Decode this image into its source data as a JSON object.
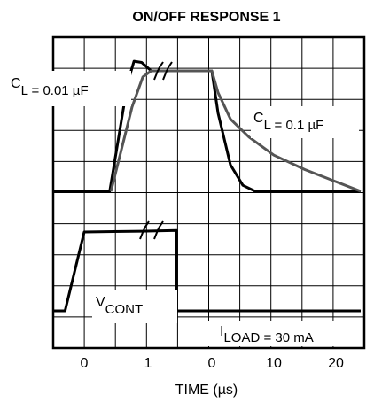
{
  "chart_data": {
    "type": "line",
    "title": "ON/OFF RESPONSE 1",
    "xlabel": "TIME (µs)",
    "x_tick_labels": [
      "0",
      "1",
      "0",
      "10",
      "20"
    ],
    "x_tick_note": "broken time axis: first segment 0–1.5 µs, second segment 0–25 µs after break",
    "grid": true,
    "panels": [
      {
        "name": "output",
        "series": [
          {
            "name": "CL = 0.01 µF",
            "color": "#000000",
            "points": [
              [
                0.4,
                0.0
              ],
              [
                0.68,
                0.9
              ],
              [
                0.78,
                1.08
              ],
              [
                0.9,
                1.07
              ],
              [
                1.05,
                1.0
              ],
              [
                1.35,
                1.0
              ],
              [
                1.5,
                1.0
              ],
              [
                0,
                1.0
              ],
              [
                1,
                0.65
              ],
              [
                3,
                0.22
              ],
              [
                5,
                0.05
              ],
              [
                7,
                0.0
              ],
              [
                10,
                0.0
              ],
              [
                24,
                0.0
              ]
            ]
          },
          {
            "name": "CL = 0.1 µF",
            "color": "#555555",
            "points": [
              [
                0.42,
                0.0
              ],
              [
                0.75,
                0.7
              ],
              [
                0.92,
                0.95
              ],
              [
                1.05,
                1.0
              ],
              [
                1.5,
                1.0
              ],
              [
                0,
                1.0
              ],
              [
                1,
                0.82
              ],
              [
                3,
                0.6
              ],
              [
                6,
                0.45
              ],
              [
                10,
                0.3
              ],
              [
                15,
                0.18
              ],
              [
                20,
                0.08
              ],
              [
                24,
                0.0
              ]
            ]
          }
        ],
        "annotations": [
          {
            "main": "C",
            "sub": "L = 0.01 µF"
          },
          {
            "main": "C",
            "sub": "L = 0.1 µF"
          }
        ]
      },
      {
        "name": "control",
        "series": [
          {
            "name": "VCONT",
            "color": "#000000",
            "points": [
              [
                -0.5,
                0.0
              ],
              [
                -0.3,
                0.0
              ],
              [
                0.0,
                1.0
              ],
              [
                0.9,
                1.01
              ],
              [
                1.45,
                1.02
              ],
              [
                1.45,
                0.0
              ],
              [
                24,
                0.0
              ]
            ]
          }
        ],
        "annotations": [
          {
            "main": "V",
            "sub": "CONT"
          },
          {
            "main": "I",
            "sub": "LOAD = 30 mA"
          }
        ]
      }
    ]
  }
}
